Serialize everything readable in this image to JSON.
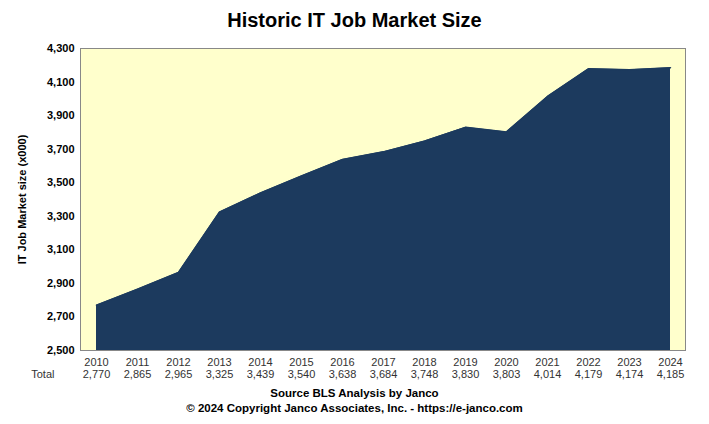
{
  "chart_data": {
    "type": "area",
    "title": "Historic IT Job Market Size",
    "y_label": "IT Job Market size (x000)",
    "caption": [
      "Source BLS Analysis by Janco",
      "© 2024 Copyright Janco Associates, Inc. - https://e-janco.com"
    ],
    "categories": [
      "2010",
      "2011",
      "2012",
      "2013",
      "2014",
      "2015",
      "2016",
      "2017",
      "2018",
      "2019",
      "2020",
      "2021",
      "2022",
      "2023",
      "2024"
    ],
    "series": [
      {
        "name": "Total",
        "color": "#1c3a5e",
        "values": [
          2770,
          2865,
          2965,
          3325,
          3439,
          3540,
          3638,
          3684,
          3748,
          3830,
          3803,
          4014,
          4179,
          4174,
          4185
        ],
        "value_labels": [
          "2,770",
          "2,865",
          "2,965",
          "3,325",
          "3,439",
          "3,540",
          "3,638",
          "3,684",
          "3,748",
          "3,830",
          "3,803",
          "4,014",
          "4,179",
          "4,174",
          "4,185"
        ]
      }
    ],
    "ylim": [
      2500,
      4300
    ],
    "yticks": [
      {
        "value": 2500,
        "label": "2,500"
      },
      {
        "value": 2700,
        "label": "2,700"
      },
      {
        "value": 2900,
        "label": "2,900"
      },
      {
        "value": 3100,
        "label": "3,100"
      },
      {
        "value": 3300,
        "label": "3,300"
      },
      {
        "value": 3500,
        "label": "3,500"
      },
      {
        "value": 3700,
        "label": "3,700"
      },
      {
        "value": 3900,
        "label": "3,900"
      },
      {
        "value": 4100,
        "label": "4,100"
      },
      {
        "value": 4300,
        "label": "4,300"
      }
    ],
    "grid": false,
    "data_labels": true
  }
}
